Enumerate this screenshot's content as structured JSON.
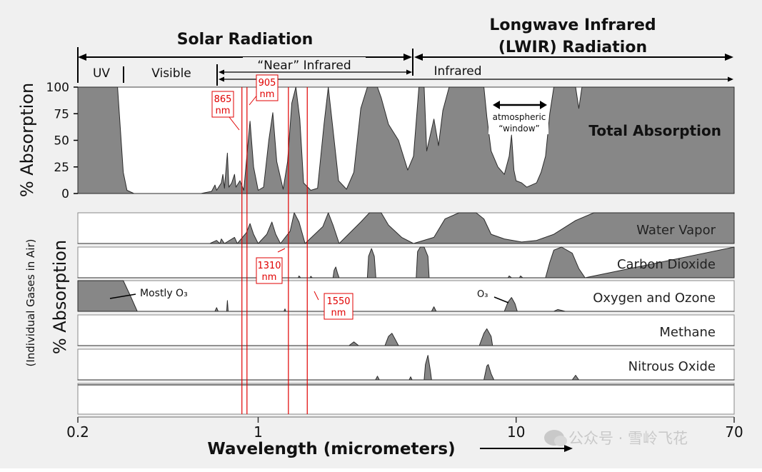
{
  "chart_data": {
    "type": "area",
    "xscale": "log",
    "xlim": [
      0.2,
      70
    ],
    "xlabel": "Wavelength (micrometers)",
    "x_ticks": [
      {
        "label": "0.2",
        "value": 0.2
      },
      {
        "label": "1",
        "value": 1
      },
      {
        "label": "10",
        "value": 10
      },
      {
        "label": "70",
        "value": 70
      }
    ],
    "bands": {
      "solar": "Solar Radiation",
      "lwir_line1": "Longwave Infrared",
      "lwir_line2": "(LWIR) Radiation",
      "uv": "UV",
      "visible": "Visible",
      "near_ir": "“Near” Infrared",
      "infrared": "Infrared"
    },
    "total": {
      "ylabel": "% Absorption",
      "yticks": [
        0,
        25,
        50,
        75,
        100
      ],
      "ylim": [
        0,
        100
      ],
      "label": "Total Absorption",
      "window_label1": "atmospheric",
      "window_label2": "“window”",
      "points": [
        [
          0.2,
          100
        ],
        [
          0.285,
          100
        ],
        [
          0.3,
          20
        ],
        [
          0.31,
          3
        ],
        [
          0.33,
          0
        ],
        [
          0.6,
          0
        ],
        [
          0.66,
          2
        ],
        [
          0.68,
          8
        ],
        [
          0.69,
          3
        ],
        [
          0.72,
          10
        ],
        [
          0.73,
          18
        ],
        [
          0.74,
          5
        ],
        [
          0.76,
          38
        ],
        [
          0.77,
          6
        ],
        [
          0.79,
          10
        ],
        [
          0.81,
          18
        ],
        [
          0.82,
          6
        ],
        [
          0.85,
          12
        ],
        [
          0.88,
          3
        ],
        [
          0.9,
          30
        ],
        [
          0.93,
          68
        ],
        [
          0.96,
          25
        ],
        [
          1.0,
          3
        ],
        [
          1.05,
          6
        ],
        [
          1.1,
          50
        ],
        [
          1.14,
          76
        ],
        [
          1.18,
          30
        ],
        [
          1.25,
          4
        ],
        [
          1.3,
          30
        ],
        [
          1.35,
          85
        ],
        [
          1.4,
          100
        ],
        [
          1.45,
          70
        ],
        [
          1.5,
          10
        ],
        [
          1.6,
          3
        ],
        [
          1.7,
          5
        ],
        [
          1.8,
          65
        ],
        [
          1.87,
          100
        ],
        [
          1.95,
          60
        ],
        [
          2.05,
          12
        ],
        [
          2.2,
          4
        ],
        [
          2.35,
          20
        ],
        [
          2.5,
          80
        ],
        [
          2.65,
          100
        ],
        [
          2.9,
          100
        ],
        [
          3.0,
          90
        ],
        [
          3.2,
          65
        ],
        [
          3.5,
          50
        ],
        [
          3.8,
          22
        ],
        [
          4.0,
          35
        ],
        [
          4.2,
          100
        ],
        [
          4.4,
          100
        ],
        [
          4.5,
          40
        ],
        [
          4.8,
          70
        ],
        [
          5.0,
          45
        ],
        [
          5.2,
          78
        ],
        [
          5.5,
          100
        ],
        [
          7.5,
          100
        ],
        [
          7.7,
          72
        ],
        [
          8.0,
          40
        ],
        [
          8.5,
          25
        ],
        [
          9.0,
          18
        ],
        [
          9.4,
          35
        ],
        [
          9.6,
          55
        ],
        [
          9.8,
          22
        ],
        [
          10.0,
          12
        ],
        [
          10.5,
          10
        ],
        [
          11,
          6
        ],
        [
          12,
          10
        ],
        [
          12.5,
          20
        ],
        [
          13,
          35
        ],
        [
          13.5,
          75
        ],
        [
          14,
          100
        ],
        [
          17,
          100
        ],
        [
          17.5,
          80
        ],
        [
          18,
          100
        ],
        [
          70,
          100
        ]
      ]
    },
    "gases_ylabel": "% Absorption",
    "gases_sublabel": "(Individual Gases in Air)",
    "gases": [
      {
        "name": "Water Vapor",
        "points": [
          [
            0.2,
            0
          ],
          [
            0.65,
            0
          ],
          [
            0.69,
            10
          ],
          [
            0.71,
            0
          ],
          [
            0.72,
            15
          ],
          [
            0.74,
            0
          ],
          [
            0.81,
            20
          ],
          [
            0.83,
            0
          ],
          [
            0.9,
            35
          ],
          [
            0.93,
            65
          ],
          [
            0.96,
            30
          ],
          [
            1.0,
            0
          ],
          [
            1.08,
            30
          ],
          [
            1.13,
            70
          ],
          [
            1.17,
            30
          ],
          [
            1.22,
            0
          ],
          [
            1.33,
            40
          ],
          [
            1.38,
            100
          ],
          [
            1.44,
            70
          ],
          [
            1.52,
            0
          ],
          [
            1.78,
            55
          ],
          [
            1.87,
            100
          ],
          [
            1.95,
            60
          ],
          [
            2.06,
            0
          ],
          [
            2.5,
            70
          ],
          [
            2.7,
            100
          ],
          [
            3.0,
            100
          ],
          [
            3.2,
            60
          ],
          [
            3.6,
            20
          ],
          [
            4.0,
            0
          ],
          [
            4.8,
            20
          ],
          [
            5.3,
            80
          ],
          [
            6.0,
            100
          ],
          [
            7.0,
            100
          ],
          [
            7.5,
            80
          ],
          [
            8.0,
            30
          ],
          [
            9.0,
            15
          ],
          [
            10.5,
            5
          ],
          [
            12,
            10
          ],
          [
            14,
            30
          ],
          [
            17,
            75
          ],
          [
            20,
            100
          ],
          [
            70,
            100
          ]
        ]
      },
      {
        "name": "Carbon Dioxide",
        "points": [
          [
            0.2,
            0
          ],
          [
            1.43,
            0
          ],
          [
            1.44,
            6
          ],
          [
            1.46,
            0
          ],
          [
            1.59,
            0
          ],
          [
            1.6,
            5
          ],
          [
            1.62,
            0
          ],
          [
            1.95,
            0
          ],
          [
            1.97,
            25
          ],
          [
            2.0,
            35
          ],
          [
            2.03,
            15
          ],
          [
            2.06,
            0
          ],
          [
            2.65,
            0
          ],
          [
            2.68,
            70
          ],
          [
            2.75,
            95
          ],
          [
            2.82,
            70
          ],
          [
            2.86,
            0
          ],
          [
            4.1,
            0
          ],
          [
            4.15,
            85
          ],
          [
            4.25,
            100
          ],
          [
            4.4,
            100
          ],
          [
            4.55,
            70
          ],
          [
            4.6,
            0
          ],
          [
            9.3,
            0
          ],
          [
            9.4,
            6
          ],
          [
            9.6,
            0
          ],
          [
            10.3,
            0
          ],
          [
            10.4,
            6
          ],
          [
            10.6,
            0
          ],
          [
            13.0,
            0
          ],
          [
            13.5,
            50
          ],
          [
            14.0,
            90
          ],
          [
            15.0,
            100
          ],
          [
            16.5,
            80
          ],
          [
            17.5,
            30
          ],
          [
            18.5,
            0
          ],
          [
            70,
            100
          ]
        ]
      },
      {
        "name": "Oxygen and Ozone",
        "points": [
          [
            0.2,
            100
          ],
          [
            0.3,
            100
          ],
          [
            0.32,
            50
          ],
          [
            0.34,
            0
          ],
          [
            0.68,
            0
          ],
          [
            0.69,
            12
          ],
          [
            0.7,
            0
          ],
          [
            0.755,
            0
          ],
          [
            0.76,
            35
          ],
          [
            0.765,
            0
          ],
          [
            1.26,
            0
          ],
          [
            1.27,
            8
          ],
          [
            1.28,
            0
          ],
          [
            4.7,
            0
          ],
          [
            4.8,
            15
          ],
          [
            4.9,
            0
          ],
          [
            9.0,
            0
          ],
          [
            9.3,
            30
          ],
          [
            9.6,
            45
          ],
          [
            9.9,
            25
          ],
          [
            10.1,
            0
          ],
          [
            14,
            0
          ],
          [
            14.5,
            6
          ],
          [
            15.5,
            0
          ],
          [
            70,
            0
          ]
        ]
      },
      {
        "name": "Methane",
        "points": [
          [
            0.2,
            0
          ],
          [
            2.25,
            0
          ],
          [
            2.35,
            12
          ],
          [
            2.45,
            0
          ],
          [
            3.1,
            0
          ],
          [
            3.2,
            30
          ],
          [
            3.3,
            40
          ],
          [
            3.4,
            20
          ],
          [
            3.5,
            0
          ],
          [
            7.2,
            0
          ],
          [
            7.5,
            40
          ],
          [
            7.7,
            55
          ],
          [
            8.0,
            30
          ],
          [
            8.1,
            0
          ],
          [
            70,
            0
          ]
        ]
      },
      {
        "name": "Nitrous Oxide",
        "points": [
          [
            0.2,
            0
          ],
          [
            2.85,
            0
          ],
          [
            2.9,
            12
          ],
          [
            2.95,
            0
          ],
          [
            3.85,
            0
          ],
          [
            3.9,
            10
          ],
          [
            3.95,
            0
          ],
          [
            4.4,
            0
          ],
          [
            4.45,
            50
          ],
          [
            4.55,
            80
          ],
          [
            4.65,
            30
          ],
          [
            4.7,
            0
          ],
          [
            7.5,
            0
          ],
          [
            7.7,
            45
          ],
          [
            7.8,
            50
          ],
          [
            8.0,
            20
          ],
          [
            8.2,
            0
          ],
          [
            16.5,
            0
          ],
          [
            17,
            15
          ],
          [
            17.5,
            0
          ],
          [
            70,
            0
          ]
        ]
      }
    ],
    "markers": [
      {
        "label1": "865",
        "label2": "nm",
        "wavelength_nm": 865
      },
      {
        "label1": "905",
        "label2": "nm",
        "wavelength_nm": 905
      },
      {
        "label1": "1310",
        "label2": "nm",
        "wavelength_nm": 1310
      },
      {
        "label1": "1550",
        "label2": "nm",
        "wavelength_nm": 1550
      }
    ],
    "annotations": {
      "mostly_o3": "Mostly O₃",
      "o3": "O₃"
    },
    "colors": {
      "fill": "#878787",
      "stroke": "#2a2a2a",
      "marker": "#e00000",
      "panel": "#ffffff",
      "background": "#f0f0f0"
    }
  },
  "watermark": {
    "text": "公众号 · 雪岭飞花"
  }
}
